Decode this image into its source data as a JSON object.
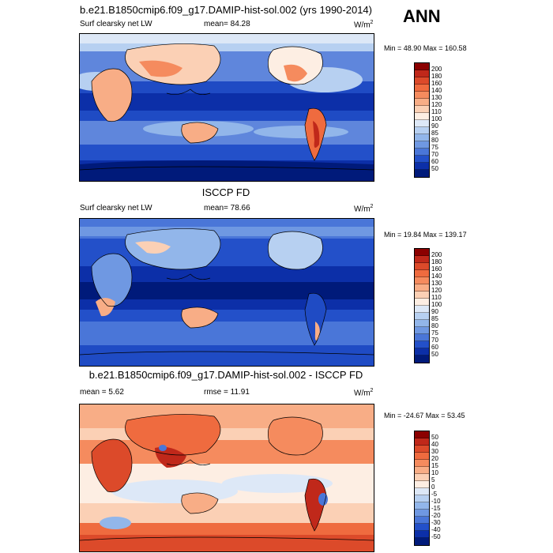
{
  "season": "ANN",
  "panels": [
    {
      "title": "b.e21.B1850cmip6.f09_g17.DAMIP-hist-sol.002 (yrs 1990-2014)",
      "left_label": "Surf clearsky net LW",
      "stat_label": "mean=",
      "stat_value": "84.28",
      "units_base": "W/m",
      "units_sup": "2",
      "minmax": "Min =  48.90 Max = 160.58",
      "colorbar_levels": [
        "200",
        "180",
        "160",
        "140",
        "130",
        "120",
        "110",
        "100",
        "90",
        "85",
        "80",
        "75",
        "70",
        "60",
        "50"
      ],
      "colorbar_colors": [
        "#8b0000",
        "#c0281a",
        "#dc4a2a",
        "#ef6b3f",
        "#f58b5e",
        "#f8ad86",
        "#fbd0b5",
        "#fdeee3",
        "#dde8f7",
        "#b7d0f1",
        "#92b6ea",
        "#6f98e2",
        "#4a76d8",
        "#2350c9",
        "#0c2fa8",
        "#001a7a"
      ]
    },
    {
      "title": "ISCCP FD",
      "left_label": "Surf clearsky net LW",
      "stat_label": "mean=",
      "stat_value": "78.66",
      "units_base": "W/m",
      "units_sup": "2",
      "minmax": "Min =  19.84 Max = 139.17",
      "colorbar_levels": [
        "200",
        "180",
        "160",
        "140",
        "130",
        "120",
        "110",
        "100",
        "90",
        "85",
        "80",
        "75",
        "70",
        "60",
        "50"
      ],
      "colorbar_colors": [
        "#8b0000",
        "#c0281a",
        "#dc4a2a",
        "#ef6b3f",
        "#f58b5e",
        "#f8ad86",
        "#fbd0b5",
        "#fdeee3",
        "#dde8f7",
        "#b7d0f1",
        "#92b6ea",
        "#6f98e2",
        "#4a76d8",
        "#2350c9",
        "#0c2fa8",
        "#001a7a"
      ]
    },
    {
      "title": "b.e21.B1850cmip6.f09_g17.DAMIP-hist-sol.002 - ISCCP FD",
      "left_label": "mean =  5.62",
      "stat_label": "rmse =",
      "stat_value": "11.91",
      "units_base": "W/m",
      "units_sup": "2",
      "minmax": "Min = -24.67 Max =  53.45",
      "colorbar_levels": [
        "50",
        "40",
        "30",
        "20",
        "15",
        "10",
        "5",
        "0",
        "-5",
        "-10",
        "-15",
        "-20",
        "-30",
        "-40",
        "-50"
      ],
      "colorbar_colors": [
        "#8b0000",
        "#c0281a",
        "#dc4a2a",
        "#ef6b3f",
        "#f58b5e",
        "#f8ad86",
        "#fbd0b5",
        "#fdeee3",
        "#dde8f7",
        "#b7d0f1",
        "#92b6ea",
        "#6f98e2",
        "#4a76d8",
        "#2350c9",
        "#0c2fa8",
        "#001a7a"
      ]
    }
  ]
}
